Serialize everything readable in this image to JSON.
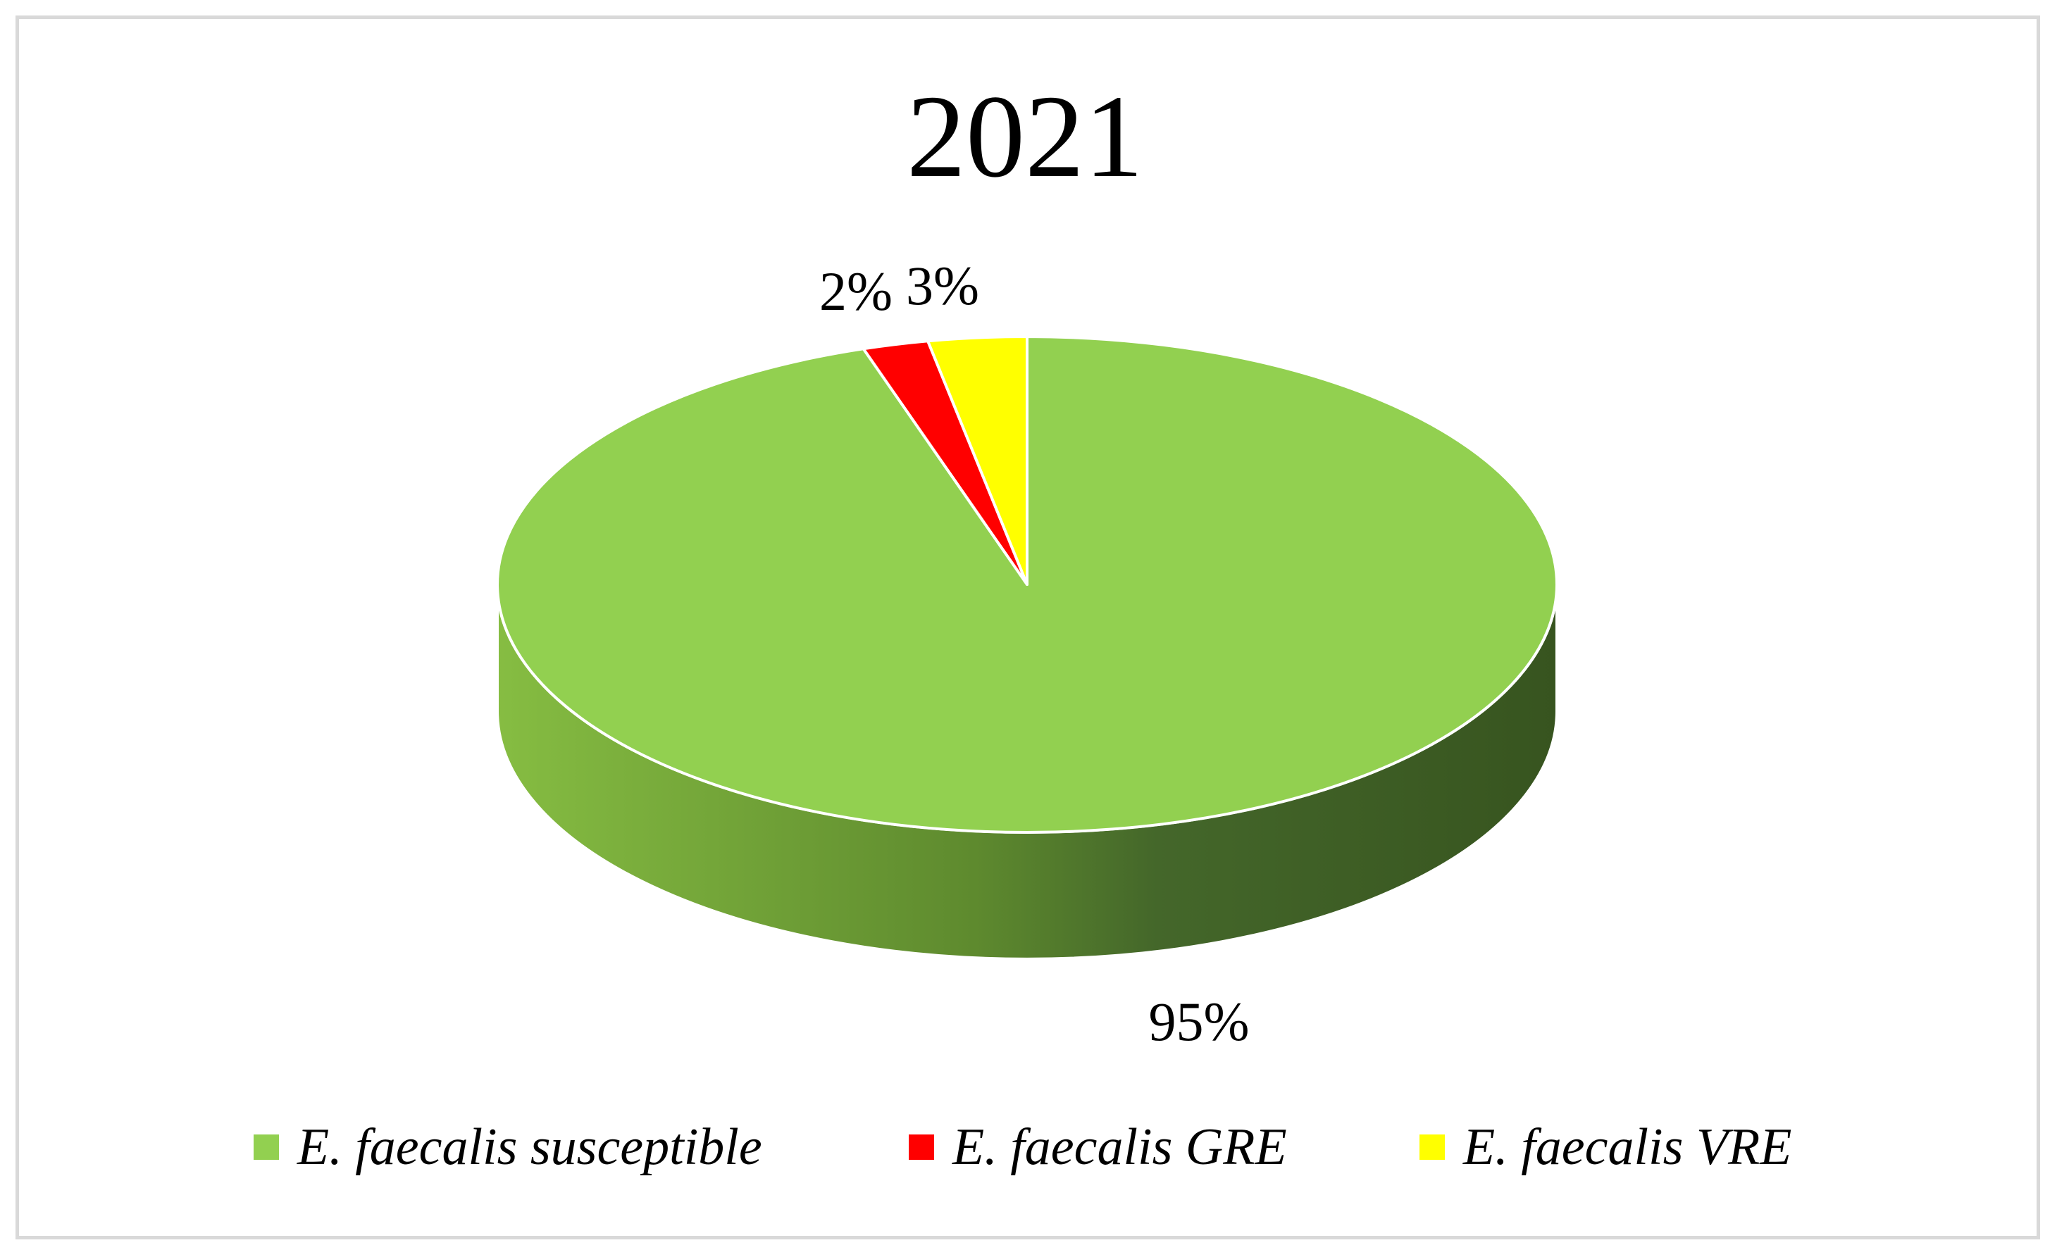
{
  "chart_data": {
    "type": "pie",
    "title": "2021",
    "legend_position": "bottom",
    "slices": [
      {
        "label": "E. faecalis susceptible",
        "value": 95,
        "display": "95%",
        "color": "#92d050"
      },
      {
        "label": "E. faecalis GRE",
        "value": 2,
        "display": "2%",
        "color": "#ff0000"
      },
      {
        "label": "E. faecalis VRE",
        "value": 3,
        "display": "3%",
        "color": "#ffff00"
      }
    ]
  }
}
